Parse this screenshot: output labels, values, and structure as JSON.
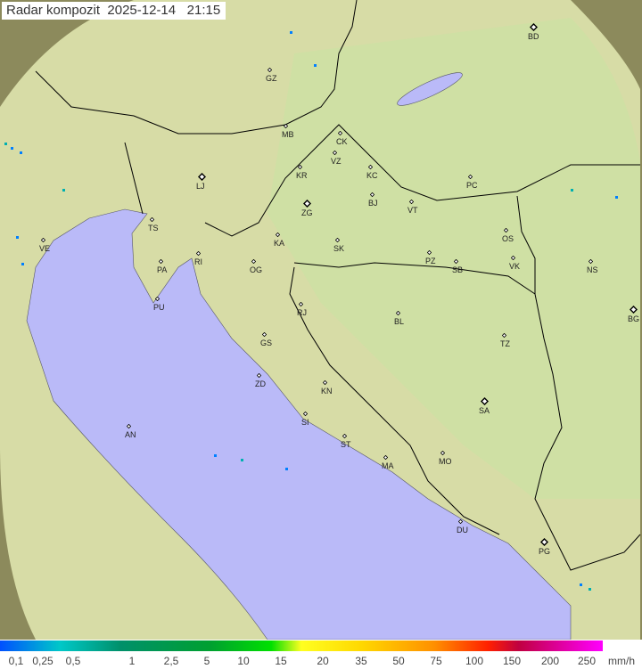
{
  "title": {
    "label": "Radar kompozit",
    "date": "2025-12-14",
    "time": "21:15"
  },
  "colors": {
    "land": "#c9dca0",
    "sea": "#b8b8f8",
    "outside": "#8a8a5a",
    "borders": "#000000"
  },
  "legend": {
    "ticks": [
      "0,1",
      "0,25",
      "0,5",
      "1",
      "2,5",
      "5",
      "10",
      "15",
      "20",
      "35",
      "50",
      "75",
      "100",
      "150",
      "200",
      "250"
    ],
    "unit": "mm/h"
  },
  "cities": [
    "BD",
    "GZ",
    "MB",
    "CK",
    "VZ",
    "KC",
    "KR",
    "PC",
    "LJ",
    "BJ",
    "VT",
    "ZG",
    "TS",
    "VE",
    "RI",
    "KA",
    "SK",
    "OS",
    "PZ",
    "SB",
    "VK",
    "NS",
    "PA",
    "OG",
    "PU",
    "RJ",
    "BL",
    "BG",
    "TZ",
    "GS",
    "ZD",
    "KN",
    "SA",
    "SI",
    "AN",
    "ST",
    "MA",
    "MO",
    "DU",
    "PG"
  ]
}
